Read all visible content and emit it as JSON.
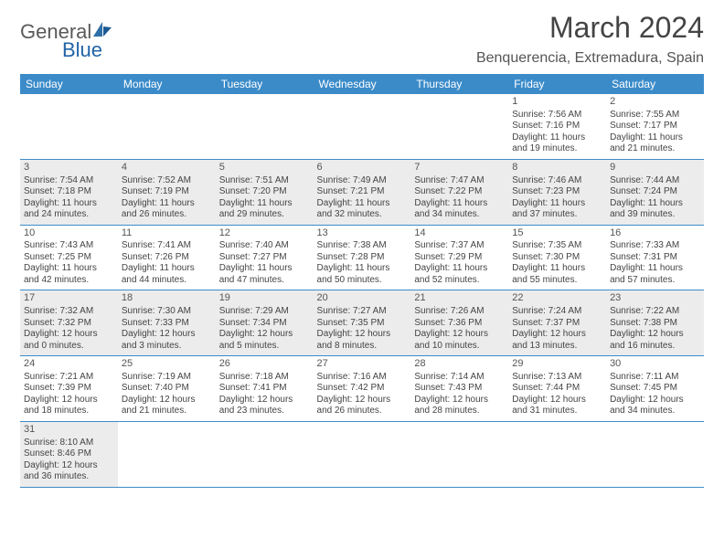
{
  "brand": {
    "name_a": "General",
    "name_b": "Blue"
  },
  "title": "March 2024",
  "location": "Benquerencia, Extremadura, Spain",
  "columns": [
    "Sunday",
    "Monday",
    "Tuesday",
    "Wednesday",
    "Thursday",
    "Friday",
    "Saturday"
  ],
  "colors": {
    "header_bg": "#3b8bc9",
    "shade_bg": "#ececec",
    "text": "#444444"
  },
  "weeks": [
    {
      "shade": false,
      "days": [
        null,
        null,
        null,
        null,
        null,
        {
          "n": "1",
          "sunrise": "Sunrise: 7:56 AM",
          "sunset": "Sunset: 7:16 PM",
          "daylight": "Daylight: 11 hours and 19 minutes."
        },
        {
          "n": "2",
          "sunrise": "Sunrise: 7:55 AM",
          "sunset": "Sunset: 7:17 PM",
          "daylight": "Daylight: 11 hours and 21 minutes."
        }
      ]
    },
    {
      "shade": true,
      "days": [
        {
          "n": "3",
          "sunrise": "Sunrise: 7:54 AM",
          "sunset": "Sunset: 7:18 PM",
          "daylight": "Daylight: 11 hours and 24 minutes."
        },
        {
          "n": "4",
          "sunrise": "Sunrise: 7:52 AM",
          "sunset": "Sunset: 7:19 PM",
          "daylight": "Daylight: 11 hours and 26 minutes."
        },
        {
          "n": "5",
          "sunrise": "Sunrise: 7:51 AM",
          "sunset": "Sunset: 7:20 PM",
          "daylight": "Daylight: 11 hours and 29 minutes."
        },
        {
          "n": "6",
          "sunrise": "Sunrise: 7:49 AM",
          "sunset": "Sunset: 7:21 PM",
          "daylight": "Daylight: 11 hours and 32 minutes."
        },
        {
          "n": "7",
          "sunrise": "Sunrise: 7:47 AM",
          "sunset": "Sunset: 7:22 PM",
          "daylight": "Daylight: 11 hours and 34 minutes."
        },
        {
          "n": "8",
          "sunrise": "Sunrise: 7:46 AM",
          "sunset": "Sunset: 7:23 PM",
          "daylight": "Daylight: 11 hours and 37 minutes."
        },
        {
          "n": "9",
          "sunrise": "Sunrise: 7:44 AM",
          "sunset": "Sunset: 7:24 PM",
          "daylight": "Daylight: 11 hours and 39 minutes."
        }
      ]
    },
    {
      "shade": false,
      "days": [
        {
          "n": "10",
          "sunrise": "Sunrise: 7:43 AM",
          "sunset": "Sunset: 7:25 PM",
          "daylight": "Daylight: 11 hours and 42 minutes."
        },
        {
          "n": "11",
          "sunrise": "Sunrise: 7:41 AM",
          "sunset": "Sunset: 7:26 PM",
          "daylight": "Daylight: 11 hours and 44 minutes."
        },
        {
          "n": "12",
          "sunrise": "Sunrise: 7:40 AM",
          "sunset": "Sunset: 7:27 PM",
          "daylight": "Daylight: 11 hours and 47 minutes."
        },
        {
          "n": "13",
          "sunrise": "Sunrise: 7:38 AM",
          "sunset": "Sunset: 7:28 PM",
          "daylight": "Daylight: 11 hours and 50 minutes."
        },
        {
          "n": "14",
          "sunrise": "Sunrise: 7:37 AM",
          "sunset": "Sunset: 7:29 PM",
          "daylight": "Daylight: 11 hours and 52 minutes."
        },
        {
          "n": "15",
          "sunrise": "Sunrise: 7:35 AM",
          "sunset": "Sunset: 7:30 PM",
          "daylight": "Daylight: 11 hours and 55 minutes."
        },
        {
          "n": "16",
          "sunrise": "Sunrise: 7:33 AM",
          "sunset": "Sunset: 7:31 PM",
          "daylight": "Daylight: 11 hours and 57 minutes."
        }
      ]
    },
    {
      "shade": true,
      "days": [
        {
          "n": "17",
          "sunrise": "Sunrise: 7:32 AM",
          "sunset": "Sunset: 7:32 PM",
          "daylight": "Daylight: 12 hours and 0 minutes."
        },
        {
          "n": "18",
          "sunrise": "Sunrise: 7:30 AM",
          "sunset": "Sunset: 7:33 PM",
          "daylight": "Daylight: 12 hours and 3 minutes."
        },
        {
          "n": "19",
          "sunrise": "Sunrise: 7:29 AM",
          "sunset": "Sunset: 7:34 PM",
          "daylight": "Daylight: 12 hours and 5 minutes."
        },
        {
          "n": "20",
          "sunrise": "Sunrise: 7:27 AM",
          "sunset": "Sunset: 7:35 PM",
          "daylight": "Daylight: 12 hours and 8 minutes."
        },
        {
          "n": "21",
          "sunrise": "Sunrise: 7:26 AM",
          "sunset": "Sunset: 7:36 PM",
          "daylight": "Daylight: 12 hours and 10 minutes."
        },
        {
          "n": "22",
          "sunrise": "Sunrise: 7:24 AM",
          "sunset": "Sunset: 7:37 PM",
          "daylight": "Daylight: 12 hours and 13 minutes."
        },
        {
          "n": "23",
          "sunrise": "Sunrise: 7:22 AM",
          "sunset": "Sunset: 7:38 PM",
          "daylight": "Daylight: 12 hours and 16 minutes."
        }
      ]
    },
    {
      "shade": false,
      "days": [
        {
          "n": "24",
          "sunrise": "Sunrise: 7:21 AM",
          "sunset": "Sunset: 7:39 PM",
          "daylight": "Daylight: 12 hours and 18 minutes."
        },
        {
          "n": "25",
          "sunrise": "Sunrise: 7:19 AM",
          "sunset": "Sunset: 7:40 PM",
          "daylight": "Daylight: 12 hours and 21 minutes."
        },
        {
          "n": "26",
          "sunrise": "Sunrise: 7:18 AM",
          "sunset": "Sunset: 7:41 PM",
          "daylight": "Daylight: 12 hours and 23 minutes."
        },
        {
          "n": "27",
          "sunrise": "Sunrise: 7:16 AM",
          "sunset": "Sunset: 7:42 PM",
          "daylight": "Daylight: 12 hours and 26 minutes."
        },
        {
          "n": "28",
          "sunrise": "Sunrise: 7:14 AM",
          "sunset": "Sunset: 7:43 PM",
          "daylight": "Daylight: 12 hours and 28 minutes."
        },
        {
          "n": "29",
          "sunrise": "Sunrise: 7:13 AM",
          "sunset": "Sunset: 7:44 PM",
          "daylight": "Daylight: 12 hours and 31 minutes."
        },
        {
          "n": "30",
          "sunrise": "Sunrise: 7:11 AM",
          "sunset": "Sunset: 7:45 PM",
          "daylight": "Daylight: 12 hours and 34 minutes."
        }
      ]
    },
    {
      "shade": true,
      "days": [
        {
          "n": "31",
          "sunrise": "Sunrise: 8:10 AM",
          "sunset": "Sunset: 8:46 PM",
          "daylight": "Daylight: 12 hours and 36 minutes."
        },
        null,
        null,
        null,
        null,
        null,
        null
      ]
    }
  ]
}
